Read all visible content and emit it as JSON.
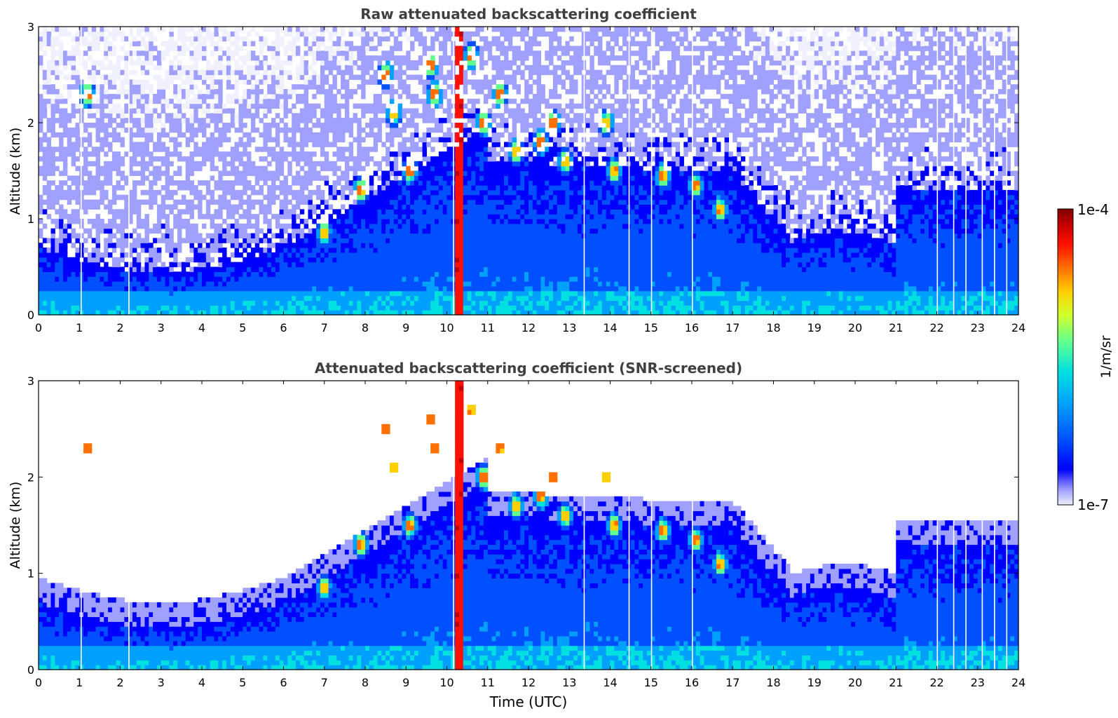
{
  "chart_data": [
    {
      "type": "heatmap",
      "title": "Raw attenuated backscattering coefficient",
      "xlabel": "",
      "ylabel": "Altitude (km)",
      "xlim": [
        0,
        24
      ],
      "ylim": [
        0,
        3
      ],
      "xticks": [
        "0",
        "1",
        "2",
        "3",
        "4",
        "5",
        "6",
        "7",
        "8",
        "9",
        "10",
        "11",
        "12",
        "13",
        "14",
        "15",
        "16",
        "17",
        "18",
        "19",
        "20",
        "21",
        "22",
        "23",
        "24"
      ],
      "yticks": [
        "0",
        "1",
        "2",
        "3"
      ],
      "screened": false
    },
    {
      "type": "heatmap",
      "title": "Attenuated backscattering coefficient (SNR-screened)",
      "xlabel": "Time (UTC)",
      "ylabel": "Altitude (km)",
      "xlim": [
        0,
        24
      ],
      "ylim": [
        0,
        3
      ],
      "xticks": [
        "0",
        "1",
        "2",
        "3",
        "4",
        "5",
        "6",
        "7",
        "8",
        "9",
        "10",
        "11",
        "12",
        "13",
        "14",
        "15",
        "16",
        "17",
        "18",
        "19",
        "20",
        "21",
        "22",
        "23",
        "24"
      ],
      "yticks": [
        "0",
        "1",
        "2",
        "3"
      ],
      "screened": true
    }
  ],
  "colorbar": {
    "label": "1/m/sr",
    "max_label": "1e-4",
    "min_label": "1e-7",
    "colors": [
      "#f0f0ff",
      "#a0a0ff",
      "#0000ff",
      "#0050ff",
      "#00a0ff",
      "#00e0e0",
      "#60ff90",
      "#d0ff30",
      "#ffd000",
      "#ff7000",
      "#ff1000",
      "#c00000",
      "#800000"
    ]
  }
}
